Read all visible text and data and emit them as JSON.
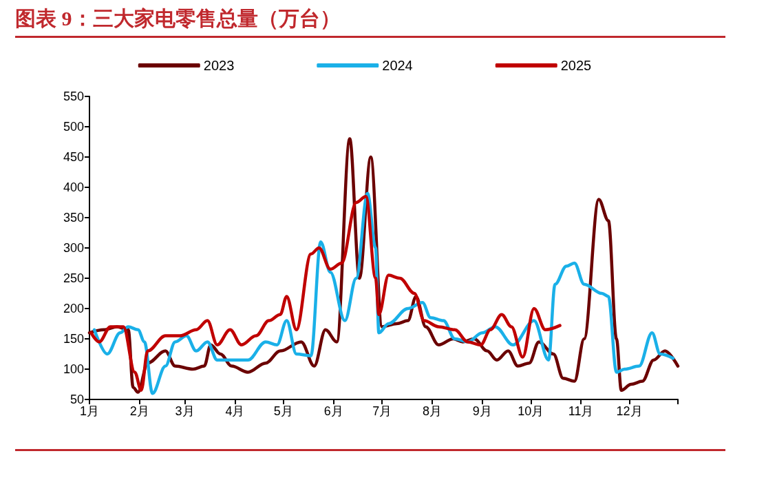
{
  "chart_data": {
    "type": "line",
    "title": "图表 9：三大家电零售总量（万台）",
    "xlim": [
      "--01-01",
      "--12-31"
    ],
    "xticks": [
      {
        "value": "--01-01",
        "label": "1月"
      },
      {
        "value": "--02-01",
        "label": "2月"
      },
      {
        "value": "--03-01",
        "label": "3月"
      },
      {
        "value": "--04-01",
        "label": "4月"
      },
      {
        "value": "--05-01",
        "label": "5月"
      },
      {
        "value": "--06-01",
        "label": "6月"
      },
      {
        "value": "--07-01",
        "label": "7月"
      },
      {
        "value": "--08-01",
        "label": "8月"
      },
      {
        "value": "--09-01",
        "label": "9月"
      },
      {
        "value": "--10-01",
        "label": "10月"
      },
      {
        "value": "--11-01",
        "label": "11月"
      },
      {
        "value": "--12-01",
        "label": "12月"
      },
      {
        "value": "--12-31",
        "label": null
      }
    ],
    "ylim": [
      50,
      550
    ],
    "yticks": [
      50,
      100,
      150,
      200,
      250,
      300,
      350,
      400,
      450,
      500,
      550
    ],
    "grid": false,
    "legend": "top",
    "marker": "none",
    "line_style": "solid",
    "series": [
      {
        "name": "2023",
        "color": "#6b0000",
        "x": [
          "--01-01",
          "--01-10",
          "--01-18",
          "--01-25",
          "--01-28",
          "--01-31",
          "--02-06",
          "--02-17",
          "--02-23",
          "--03-06",
          "--03-13",
          "--03-17",
          "--03-23",
          "--03-30",
          "--04-09",
          "--04-20",
          "--04-29",
          "--05-12",
          "--05-20",
          "--05-27",
          "--06-03",
          "--06-11",
          "--06-17",
          "--06-24",
          "--07-01",
          "--07-10",
          "--07-17",
          "--07-22",
          "--07-28",
          "--08-05",
          "--08-14",
          "--08-20",
          "--08-27",
          "--09-04",
          "--09-10",
          "--09-17",
          "--09-23",
          "--09-30",
          "--10-06",
          "--10-15",
          "--10-21",
          "--10-28",
          "--11-03",
          "--11-12",
          "--11-18",
          "--11-23",
          "--11-26",
          "--12-02",
          "--12-09",
          "--12-16",
          "--12-23",
          "--12-31"
        ],
        "values": [
          160,
          165,
          170,
          165,
          70,
          62,
          110,
          130,
          105,
          100,
          105,
          140,
          125,
          105,
          95,
          110,
          130,
          145,
          105,
          165,
          145,
          480,
          250,
          450,
          170,
          175,
          180,
          220,
          170,
          140,
          150,
          145,
          150,
          130,
          115,
          130,
          105,
          110,
          145,
          125,
          85,
          80,
          150,
          380,
          345,
          150,
          65,
          75,
          80,
          115,
          130,
          105
        ]
      },
      {
        "name": "2024",
        "color": "#1ab0e8",
        "x": [
          "--01-04",
          "--01-12",
          "--01-20",
          "--01-25",
          "--01-31",
          "--02-04",
          "--02-09",
          "--02-17",
          "--02-23",
          "--03-02",
          "--03-08",
          "--03-15",
          "--03-21",
          "--03-30",
          "--04-09",
          "--04-20",
          "--04-27",
          "--05-03",
          "--05-09",
          "--05-18",
          "--05-24",
          "--05-30",
          "--06-08",
          "--06-15",
          "--06-22",
          "--06-27",
          "--06-29",
          "--07-05",
          "--07-17",
          "--07-26",
          "--07-31",
          "--08-08",
          "--08-15",
          "--08-23",
          "--09-01",
          "--09-09",
          "--09-20",
          "--10-03",
          "--10-12",
          "--10-16",
          "--10-23",
          "--10-28",
          "--11-03",
          "--11-14",
          "--11-18",
          "--11-23",
          "--11-28",
          "--12-07",
          "--12-15",
          "--12-20",
          "--12-28"
        ],
        "values": [
          165,
          125,
          160,
          170,
          165,
          145,
          60,
          105,
          145,
          155,
          130,
          145,
          115,
          115,
          115,
          145,
          140,
          180,
          125,
          122,
          310,
          260,
          180,
          250,
          390,
          300,
          160,
          175,
          200,
          210,
          185,
          180,
          150,
          145,
          160,
          170,
          140,
          180,
          115,
          240,
          270,
          275,
          240,
          225,
          220,
          95,
          100,
          105,
          160,
          125,
          118
        ]
      },
      {
        "name": "2025",
        "color": "#c00000",
        "x": [
          "--01-02",
          "--01-07",
          "--01-14",
          "--01-22",
          "--01-29",
          "--02-02",
          "--02-06",
          "--02-17",
          "--02-26",
          "--03-08",
          "--03-15",
          "--03-21",
          "--03-29",
          "--04-05",
          "--04-14",
          "--04-22",
          "--04-29",
          "--05-03",
          "--05-09",
          "--05-18",
          "--05-23",
          "--05-30",
          "--06-06",
          "--06-15",
          "--06-21",
          "--06-27",
          "--06-29",
          "--07-05",
          "--07-12",
          "--07-21",
          "--07-27",
          "--08-05",
          "--08-15",
          "--08-23",
          "--08-31",
          "--09-06",
          "--09-13",
          "--09-19",
          "--09-26",
          "--10-03",
          "--10-10",
          "--10-19"
        ],
        "values": [
          160,
          145,
          170,
          170,
          95,
          65,
          130,
          155,
          155,
          165,
          180,
          140,
          165,
          140,
          155,
          180,
          190,
          220,
          165,
          290,
          300,
          265,
          275,
          375,
          385,
          250,
          190,
          255,
          250,
          225,
          180,
          170,
          165,
          145,
          140,
          165,
          190,
          170,
          120,
          200,
          165,
          172
        ]
      }
    ]
  }
}
